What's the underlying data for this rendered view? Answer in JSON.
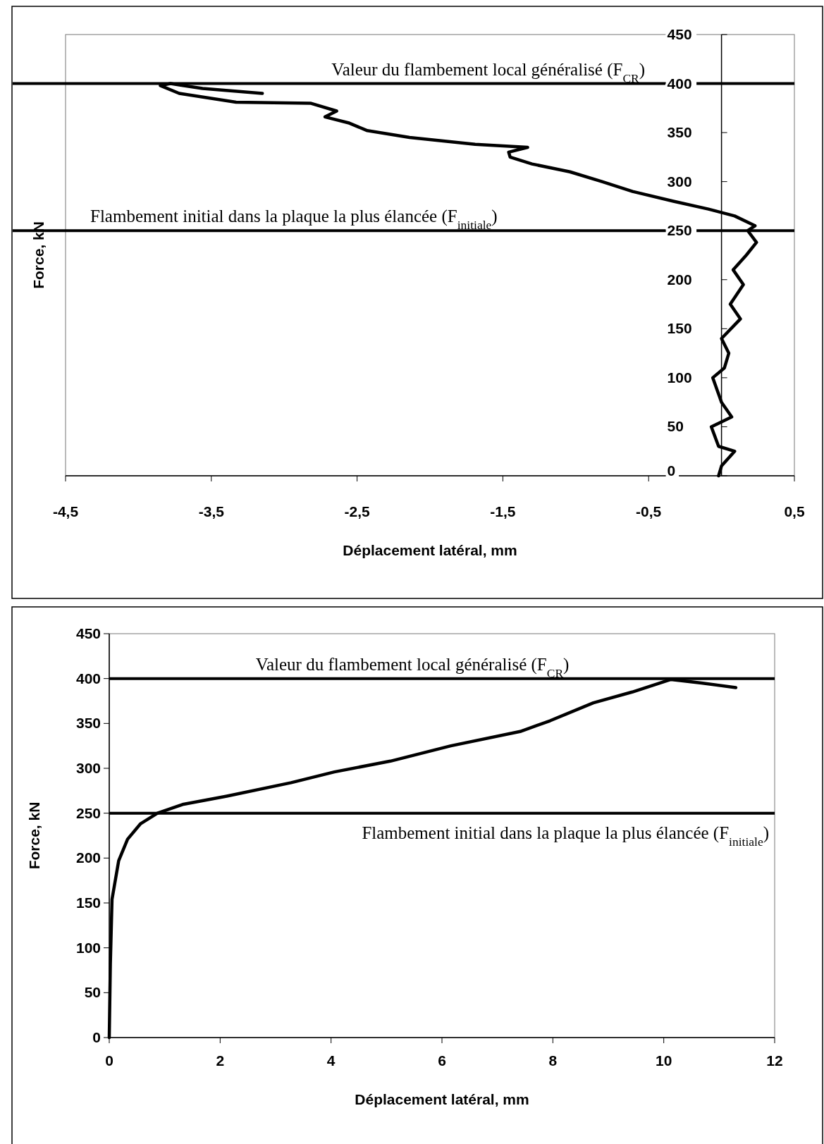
{
  "chart_data": [
    {
      "type": "line",
      "xlabel": "Déplacement latéral, mm",
      "ylabel": "Force, kN",
      "xlim": [
        -4.5,
        0.5
      ],
      "ylim": [
        0,
        450
      ],
      "xticks": [
        {
          "value": -4.5,
          "label": "-4,5"
        },
        {
          "value": -3.5,
          "label": "-3,5"
        },
        {
          "value": -2.5,
          "label": "-2,5"
        },
        {
          "value": -1.5,
          "label": "-1,5"
        },
        {
          "value": -0.5,
          "label": "-0,5"
        },
        {
          "value": 0.5,
          "label": "0,5"
        }
      ],
      "yticks": [
        0,
        50,
        100,
        150,
        200,
        250,
        300,
        350,
        400,
        450
      ],
      "grid": false,
      "marker": "none",
      "line_style": "solid",
      "series": [
        {
          "color": "#000000",
          "x": [
            -0.02,
            0.0,
            0.09,
            -0.02,
            -0.07,
            0.07,
            0.0,
            -0.06,
            0.02,
            0.05,
            0.0,
            0.13,
            0.06,
            0.15,
            0.08,
            0.17,
            0.24,
            0.18,
            0.23,
            0.09,
            -0.09,
            -0.33,
            -0.61,
            -0.82,
            -1.04,
            -1.3,
            -1.45,
            -1.46,
            -1.33,
            -1.69,
            -2.14,
            -2.43,
            -2.56,
            -2.72,
            -2.64,
            -2.82,
            -3.33,
            -3.72,
            -3.85,
            -3.78,
            -3.56,
            -3.15
          ],
          "values": [
            0,
            10,
            25,
            30,
            50,
            60,
            75,
            100,
            110,
            125,
            140,
            160,
            175,
            195,
            210,
            225,
            238,
            250,
            255,
            265,
            272,
            280,
            290,
            300,
            310,
            318,
            325,
            330,
            335,
            338,
            345,
            352,
            360,
            366,
            372,
            380,
            381,
            390,
            398,
            400,
            395,
            390
          ]
        }
      ],
      "ref_lines": [
        {
          "axis": "y",
          "value": 400,
          "label": "Valeur du flambement local généralisé (F$_{CR}$)",
          "color": "#000000",
          "line_style": "solid"
        },
        {
          "axis": "y",
          "value": 250,
          "label": "Flambement initial dans la plaque la plus élancée (F$_{initiale}$)",
          "color": "#000000",
          "line_style": "solid"
        }
      ]
    },
    {
      "type": "line",
      "xlabel": "Déplacement latéral, mm",
      "ylabel": "Force, kN",
      "xlim": [
        0,
        12
      ],
      "ylim": [
        0,
        450
      ],
      "xticks": [
        0,
        2,
        4,
        6,
        8,
        10,
        12
      ],
      "yticks": [
        0,
        50,
        100,
        150,
        200,
        250,
        300,
        350,
        400,
        450
      ],
      "grid": false,
      "marker": "none",
      "line_style": "solid",
      "series": [
        {
          "color": "#000000",
          "x": [
            0,
            0.02,
            0.05,
            0.17,
            0.33,
            0.56,
            0.87,
            1.34,
            2.12,
            3.28,
            4.06,
            5.07,
            6.16,
            7.41,
            7.95,
            8.73,
            9.43,
            10.13,
            10.68,
            11.3
          ],
          "values": [
            0,
            82,
            154,
            197,
            221,
            238,
            250,
            260,
            269,
            284,
            296,
            308,
            325,
            341,
            353,
            373,
            385,
            399,
            395,
            390
          ]
        }
      ],
      "ref_lines": [
        {
          "axis": "y",
          "value": 400,
          "label": "Valeur du flambement local généralisé (F$_{CR}$)",
          "color": "#000000",
          "line_style": "solid"
        },
        {
          "axis": "y",
          "value": 250,
          "label": "Flambement initial dans la plaque la plus élancée (F$_{initiale}$)",
          "color": "#000000",
          "line_style": "solid"
        }
      ]
    }
  ]
}
